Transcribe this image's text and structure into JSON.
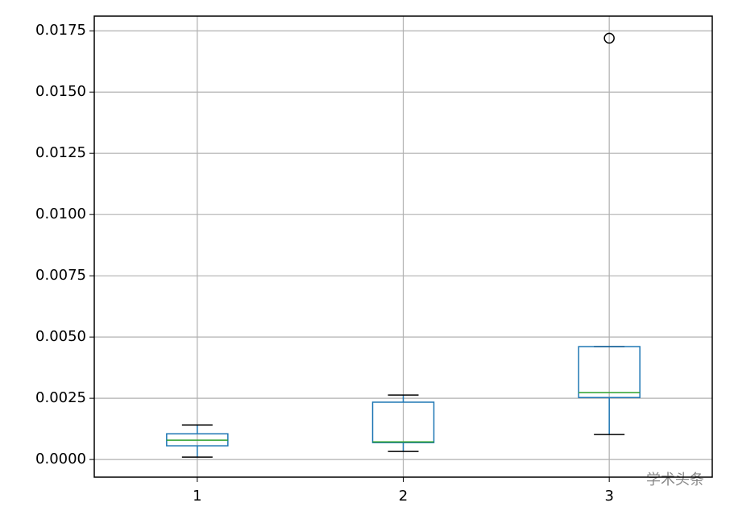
{
  "chart_data": {
    "type": "box",
    "categories": [
      "1",
      "2",
      "3"
    ],
    "boxes": [
      {
        "whislo": 0.0001,
        "q1": 0.00056,
        "med": 0.00079,
        "q3": 0.00105,
        "whishi": 0.00141,
        "fliers": []
      },
      {
        "whislo": 0.00033,
        "q1": 0.00069,
        "med": 0.00072,
        "q3": 0.00234,
        "whishi": 0.00263,
        "fliers": []
      },
      {
        "whislo": 0.00102,
        "q1": 0.00253,
        "med": 0.00273,
        "q3": 0.00461,
        "whishi": 0.00461,
        "fliers": [
          0.0172
        ]
      }
    ],
    "box_color": "#1f77b4",
    "median_color": "#2ca02c",
    "flier_color": "#000000",
    "ylim": [
      -0.00072,
      0.0181
    ],
    "yticks": [
      {
        "value": 0,
        "label": "0.0000"
      },
      {
        "value": 0.0025,
        "label": "0.0025"
      },
      {
        "value": 0.005,
        "label": "0.0050"
      },
      {
        "value": 0.0075,
        "label": "0.0075"
      },
      {
        "value": 0.01,
        "label": "0.0100"
      },
      {
        "value": 0.0125,
        "label": "0.0125"
      },
      {
        "value": 0.015,
        "label": "0.0150"
      },
      {
        "value": 0.0175,
        "label": "0.0175"
      }
    ],
    "grid": true
  },
  "watermark": "学术头条"
}
